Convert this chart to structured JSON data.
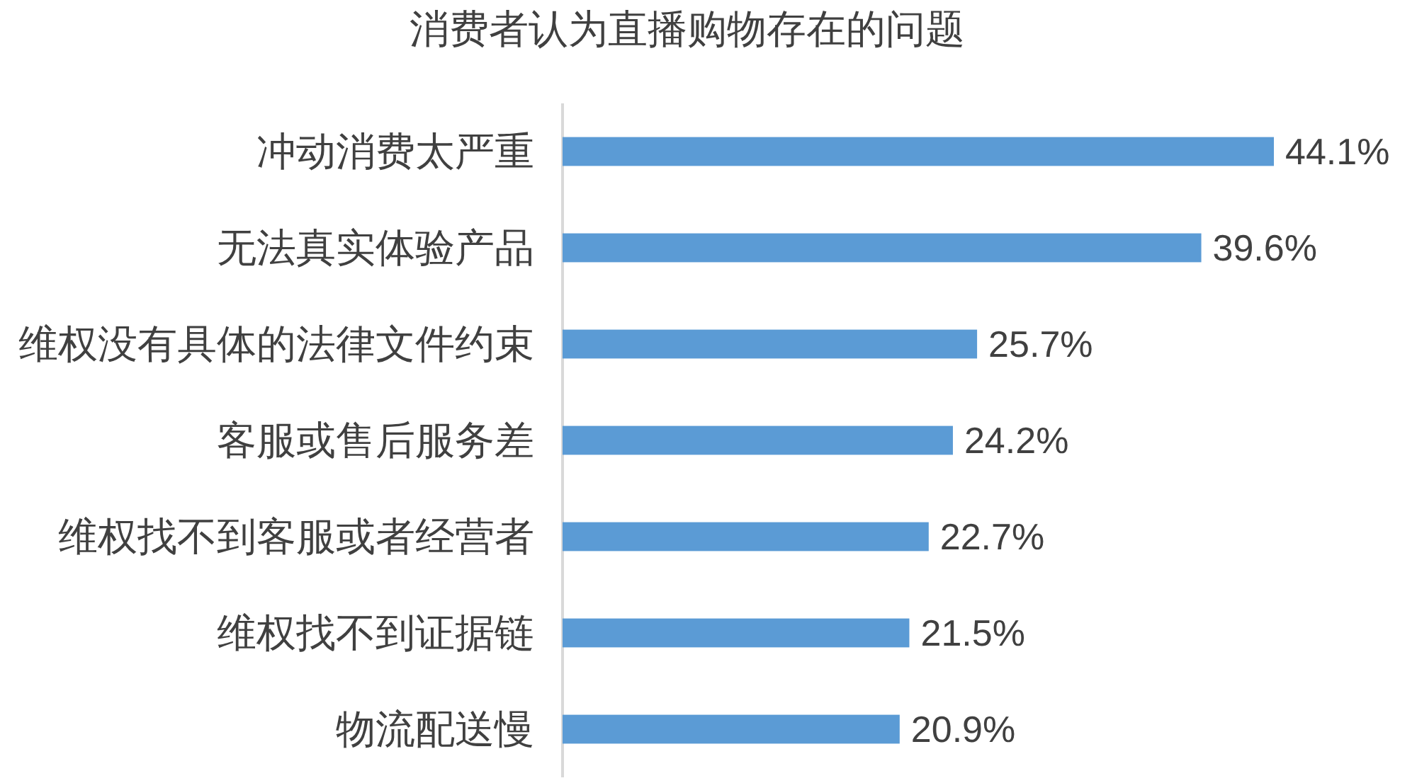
{
  "chart_data": {
    "type": "bar",
    "orientation": "horizontal",
    "title": "消费者认为直播购物存在的问题",
    "categories": [
      "冲动消费太严重",
      "无法真实体验产品",
      "维权没有具体的法律文件约束",
      "客服或售后服务差",
      "维权找不到客服或者经营者",
      "维权找不到证据链",
      "物流配送慢"
    ],
    "values": [
      44.1,
      39.6,
      25.7,
      24.2,
      22.7,
      21.5,
      20.9
    ],
    "color": "#5b9bd5",
    "value_labels": [
      "44.1%",
      "39.6%",
      "25.7%",
      "24.2%",
      "22.7%",
      "21.5%",
      "20.9%"
    ],
    "tick_labels": "y"
  }
}
